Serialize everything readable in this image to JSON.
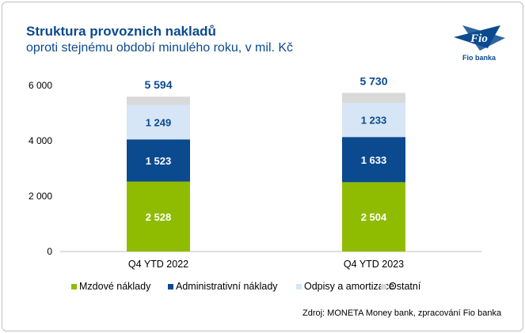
{
  "title": "Struktura provoznich nakladů",
  "subtitle": "oproti stejnému období minulého roku, v mil. Kč",
  "logo_text": "Fio",
  "logo_caption": "Fio banka",
  "source": "Zdroj: MONETA Money bank, zpracování Fio banka",
  "chart_data": {
    "type": "bar",
    "stacked": true,
    "title": "Struktura provoznich nakladů",
    "categories": [
      "Q4 YTD 2022",
      "Q4 YTD 2023"
    ],
    "totals": [
      "5 594",
      "5 730"
    ],
    "series": [
      {
        "name": "Mzdové náklady",
        "color": "#8fbc00",
        "values": [
          2528,
          2504
        ],
        "labels": [
          "2 528",
          "2 504"
        ]
      },
      {
        "name": "Administrativní náklady",
        "color": "#0b4a8f",
        "values": [
          1523,
          1633
        ],
        "labels": [
          "1 523",
          "1 633"
        ]
      },
      {
        "name": "Odpisy a amortizace",
        "color": "#d6e6f7",
        "values": [
          1249,
          1233
        ],
        "labels": [
          "1 249",
          "1 233"
        ]
      },
      {
        "name": "Ostatní",
        "color": "#d9d9d9",
        "values": [
          294,
          360
        ],
        "labels": []
      }
    ],
    "yticks": [
      0,
      2000,
      4000,
      6000
    ],
    "ytick_labels": [
      "0",
      "2 000",
      "4 000",
      "6 000"
    ],
    "ylim": [
      0,
      6000
    ],
    "legend": "bottom",
    "grid": false
  }
}
